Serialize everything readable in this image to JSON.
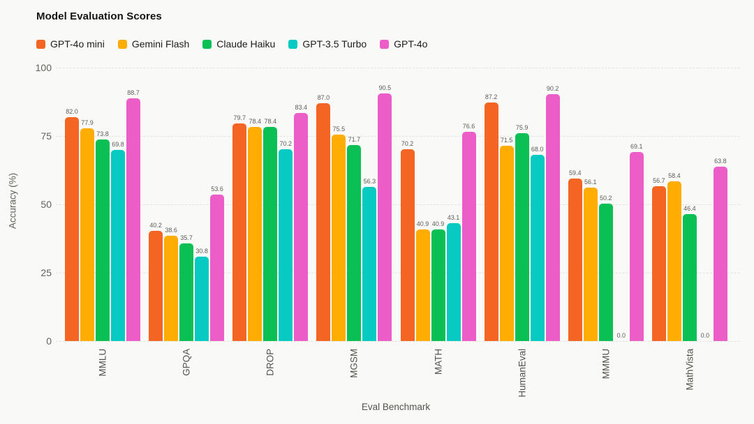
{
  "chart_data": {
    "type": "bar",
    "title": "Model Evaluation Scores",
    "xlabel": "Eval Benchmark",
    "ylabel": "Accuracy (%)",
    "ylim": [
      0,
      100
    ],
    "yticks": [
      0,
      25,
      50,
      75,
      100
    ],
    "grid": "horizontal-dashed",
    "legend_position": "top-left",
    "value_labels": true,
    "value_label_decimals": 1,
    "categories": [
      "MMLU",
      "GPQA",
      "DROP",
      "MGSM",
      "MATH",
      "HumanEval",
      "MMMU",
      "MathVista"
    ],
    "series": [
      {
        "name": "GPT-4o mini",
        "color": "#F46523",
        "values": [
          82.0,
          40.2,
          79.7,
          87.0,
          70.2,
          87.2,
          59.4,
          56.7
        ]
      },
      {
        "name": "Gemini Flash",
        "color": "#FFAD02",
        "values": [
          77.9,
          38.6,
          78.4,
          75.5,
          40.9,
          71.5,
          56.1,
          58.4
        ]
      },
      {
        "name": "Claude Haiku",
        "color": "#0ABF53",
        "values": [
          73.8,
          35.7,
          78.4,
          71.7,
          40.9,
          75.9,
          50.2,
          46.4
        ]
      },
      {
        "name": "GPT-3.5 Turbo",
        "color": "#07CBC2",
        "values": [
          69.8,
          30.8,
          70.2,
          56.3,
          43.1,
          68.0,
          0.0,
          0.0
        ]
      },
      {
        "name": "GPT-4o",
        "color": "#EC5DC8",
        "values": [
          88.7,
          53.6,
          83.4,
          90.5,
          76.6,
          90.2,
          69.1,
          63.8
        ]
      }
    ]
  },
  "colors": {
    "background": "#F9F9F7",
    "gridline": "#E3E3DD",
    "tick_text": "#63615C",
    "value_label_text": "#5B5B57",
    "title_text": "#141414"
  }
}
